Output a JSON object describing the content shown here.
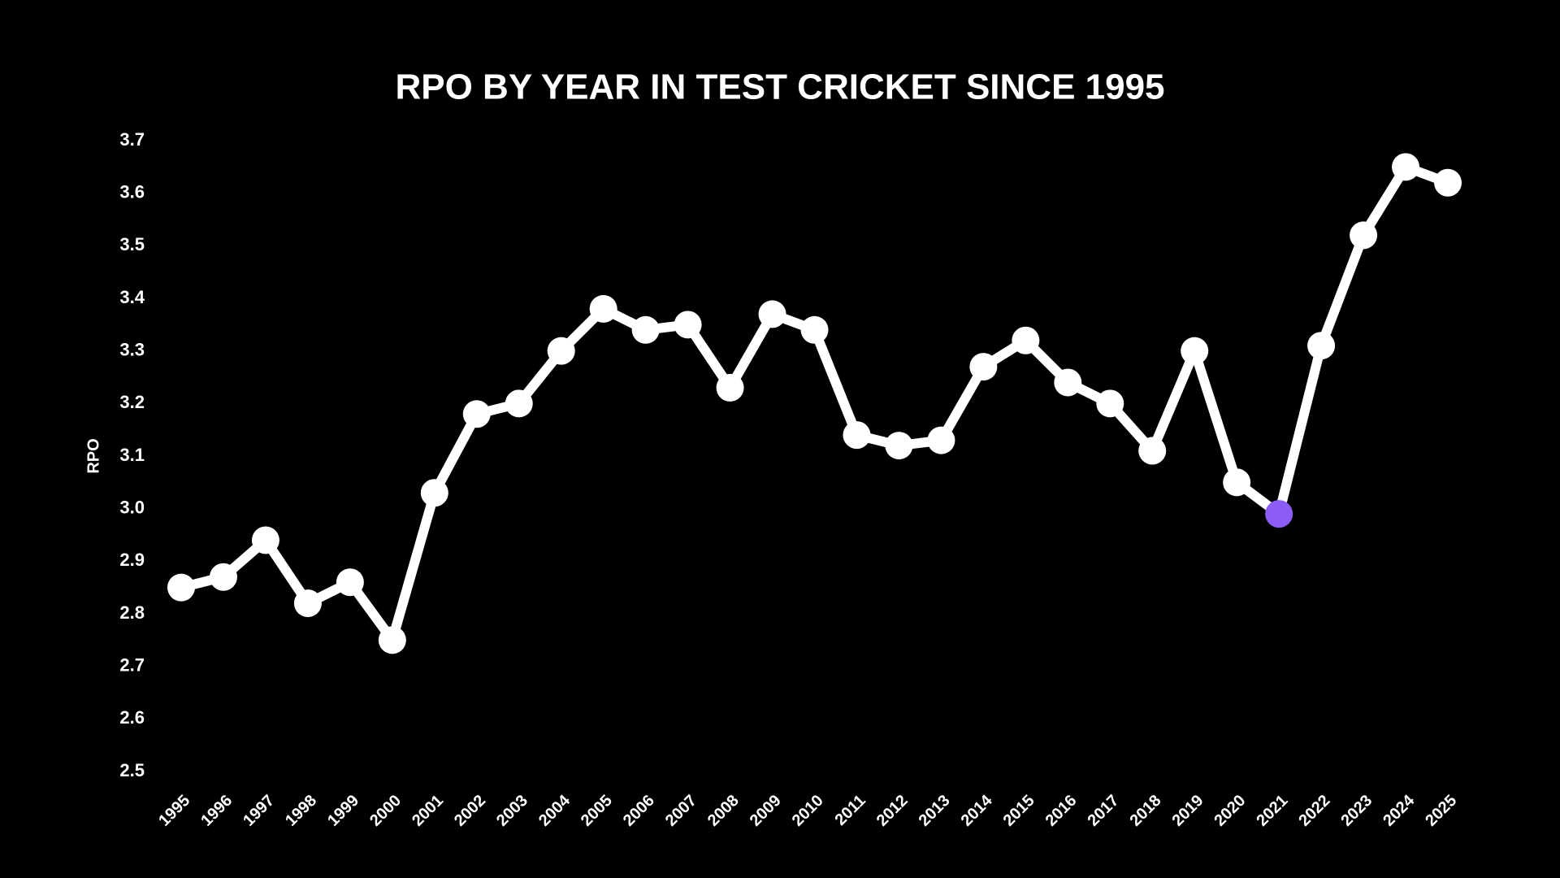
{
  "chart_data": {
    "type": "line",
    "title": "RPO BY YEAR IN TEST CRICKET SINCE 1995",
    "y_label": "RPO",
    "categories": [
      "1995",
      "1996",
      "1997",
      "1998",
      "1999",
      "2000",
      "2001",
      "2002",
      "2003",
      "2004",
      "2005",
      "2006",
      "2007",
      "2008",
      "2009",
      "2010",
      "2011",
      "2012",
      "2013",
      "2014",
      "2015",
      "2016",
      "2017",
      "2018",
      "2019",
      "2020",
      "2021",
      "2022",
      "2023",
      "2024",
      "2025"
    ],
    "values": [
      2.85,
      2.87,
      2.94,
      2.82,
      2.86,
      2.75,
      3.03,
      3.18,
      3.2,
      3.3,
      3.38,
      3.34,
      3.35,
      3.23,
      3.37,
      3.34,
      3.14,
      3.12,
      3.13,
      3.27,
      3.32,
      3.24,
      3.2,
      3.11,
      3.3,
      3.05,
      2.99,
      3.31,
      3.52,
      3.65,
      3.62
    ],
    "color": "#ffffff",
    "point_colors": [
      "#ffffff",
      "#ffffff",
      "#ffffff",
      "#ffffff",
      "#ffffff",
      "#ffffff",
      "#ffffff",
      "#ffffff",
      "#ffffff",
      "#ffffff",
      "#ffffff",
      "#ffffff",
      "#ffffff",
      "#ffffff",
      "#ffffff",
      "#ffffff",
      "#ffffff",
      "#ffffff",
      "#ffffff",
      "#ffffff",
      "#ffffff",
      "#ffffff",
      "#ffffff",
      "#ffffff",
      "#ffffff",
      "#ffffff",
      "#8b5cf6",
      "#ffffff",
      "#ffffff",
      "#ffffff",
      "#ffffff"
    ],
    "ylim": [
      2.5,
      3.7
    ],
    "yticks": [
      2.5,
      2.6,
      2.7,
      2.8,
      2.9,
      {
        "value": 3,
        "label": "3.0"
      },
      3.1,
      3.2,
      3.3,
      3.4,
      3.5,
      3.6,
      3.7
    ],
    "grid": false
  }
}
